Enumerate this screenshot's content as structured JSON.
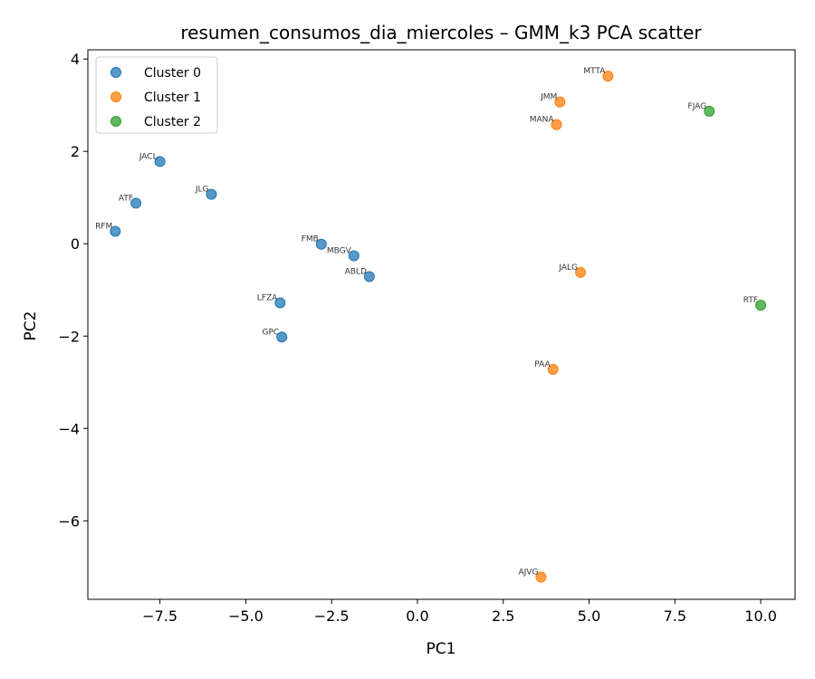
{
  "chart_data": {
    "type": "scatter",
    "title": "resumen_consumos_dia_miercoles – GMM_k3 PCA scatter",
    "xlabel": "PC1",
    "ylabel": "PC2",
    "xlim": [
      -9.6,
      11.0
    ],
    "ylim": [
      -7.7,
      4.2
    ],
    "xticks": [
      -7.5,
      -5.0,
      -2.5,
      0.0,
      2.5,
      5.0,
      7.5,
      10.0
    ],
    "xtick_labels": [
      "−7.5",
      "−5.0",
      "−2.5",
      "0.0",
      "2.5",
      "5.0",
      "7.5",
      "10.0"
    ],
    "yticks": [
      -6,
      -4,
      -2,
      0,
      2,
      4
    ],
    "ytick_labels": [
      "−6",
      "−4",
      "−2",
      "0",
      "2",
      "4"
    ],
    "grid": false,
    "legend": {
      "position": "top-left"
    },
    "series": [
      {
        "name": "Cluster 0",
        "color": "#1f77b4",
        "points": [
          {
            "label": "JACL",
            "x": -7.5,
            "y": 1.78
          },
          {
            "label": "ATF",
            "x": -8.2,
            "y": 0.88
          },
          {
            "label": "JLG",
            "x": -6.0,
            "y": 1.07
          },
          {
            "label": "RFM",
            "x": -8.8,
            "y": 0.27
          },
          {
            "label": "FMB",
            "x": -2.8,
            "y": -0.01
          },
          {
            "label": "MBGV",
            "x": -1.85,
            "y": -0.26
          },
          {
            "label": "ABLD",
            "x": -1.4,
            "y": -0.71
          },
          {
            "label": "LFZA",
            "x": -4.0,
            "y": -1.28
          },
          {
            "label": "GPC",
            "x": -3.95,
            "y": -2.02
          }
        ]
      },
      {
        "name": "Cluster 1",
        "color": "#ff7f0e",
        "points": [
          {
            "label": "MTTA",
            "x": 5.55,
            "y": 3.63
          },
          {
            "label": "JMM",
            "x": 4.15,
            "y": 3.07
          },
          {
            "label": "MANA",
            "x": 4.05,
            "y": 2.58
          },
          {
            "label": "JALG",
            "x": 4.75,
            "y": -0.62
          },
          {
            "label": "PAA",
            "x": 3.95,
            "y": -2.72
          },
          {
            "label": "AJVG",
            "x": 3.6,
            "y": -7.22
          }
        ]
      },
      {
        "name": "Cluster 2",
        "color": "#2ca02c",
        "points": [
          {
            "label": "FJAG",
            "x": 8.5,
            "y": 2.87
          },
          {
            "label": "RTF",
            "x": 10.0,
            "y": -1.33
          }
        ]
      }
    ]
  }
}
